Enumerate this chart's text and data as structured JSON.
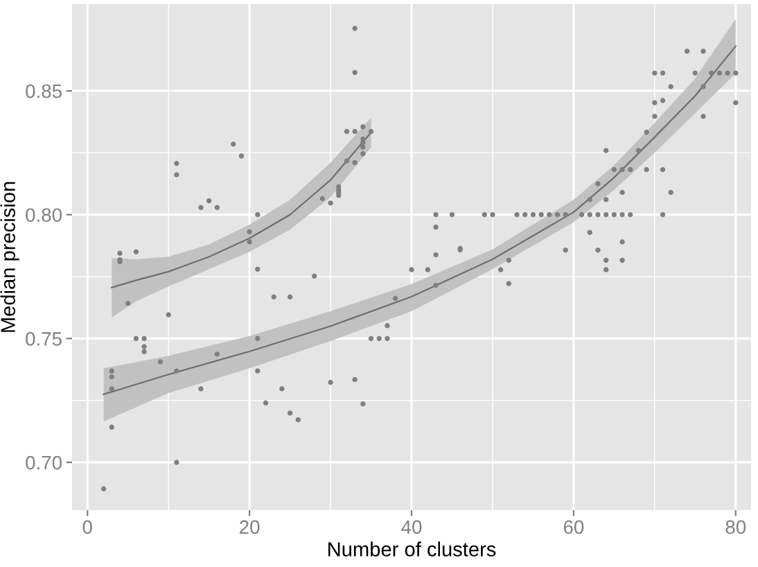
{
  "chart_data": {
    "type": "scatter",
    "xlabel": "Number of clusters",
    "ylabel": "Median precision",
    "xlim": [
      -1.9,
      81.9
    ],
    "ylim": [
      0.6807,
      0.885
    ],
    "xticks": [
      0,
      {
        "value": 10,
        "label": null
      },
      20,
      {
        "value": 30,
        "label": null
      },
      40,
      {
        "value": 50,
        "label": null
      },
      60,
      {
        "value": 70,
        "label": null
      },
      80
    ],
    "yticks": [
      {
        "value": 0.7,
        "label": "0.70"
      },
      {
        "value": 0.725,
        "label": null
      },
      {
        "value": 0.75,
        "label": "0.75"
      },
      {
        "value": 0.775,
        "label": null
      },
      {
        "value": 0.8,
        "label": "0.80"
      },
      {
        "value": 0.825,
        "label": null
      },
      {
        "value": 0.85,
        "label": "0.85"
      }
    ],
    "grid": true,
    "line_style": "solid",
    "series": [
      {
        "marker": "circle",
        "color": "#7f7f7f",
        "x": [
          4,
          4,
          4,
          5,
          6,
          10,
          11,
          11,
          14,
          15,
          16,
          18,
          19,
          20,
          20,
          21,
          21,
          29,
          30,
          31,
          31,
          31,
          31,
          32,
          32,
          33,
          33,
          33,
          33,
          34,
          34,
          34,
          34,
          34,
          35
        ],
        "values": [
          0.7844,
          0.7818,
          0.781,
          0.7642,
          0.785,
          0.7596,
          0.8207,
          0.8161,
          0.8029,
          0.8056,
          0.8029,
          0.8285,
          0.8237,
          0.7931,
          0.789,
          0.8,
          0.778,
          0.8065,
          0.8047,
          0.8113,
          0.81,
          0.8089,
          0.8078,
          0.8336,
          0.8217,
          0.8752,
          0.8574,
          0.8336,
          0.821,
          0.8355,
          0.8305,
          0.8292,
          0.8273,
          0.8246,
          0.8336
        ]
      },
      {
        "marker": "circle",
        "color": "#7f7f7f",
        "x": [
          2,
          3,
          3,
          3,
          3,
          6,
          7,
          7,
          7,
          9,
          11,
          11,
          14,
          16,
          21,
          21,
          22,
          23,
          24,
          25,
          25,
          26,
          28,
          30,
          33,
          34,
          35,
          36,
          37,
          37,
          38,
          40,
          42,
          43,
          43,
          43,
          43,
          45,
          46,
          46,
          49,
          50,
          51,
          52,
          52,
          53,
          54,
          55,
          56,
          57,
          58,
          59,
          59,
          61,
          62,
          62,
          62,
          63,
          63,
          63,
          64,
          64,
          64,
          64,
          64,
          65,
          65,
          66,
          66,
          66,
          66,
          66,
          67,
          67,
          68,
          69,
          69,
          70,
          70,
          70,
          71,
          71,
          71,
          71,
          72,
          72,
          74,
          75,
          76,
          76,
          76,
          77,
          78,
          79,
          80,
          80
        ],
        "values": [
          0.6893,
          0.7369,
          0.7345,
          0.7297,
          0.7142,
          0.75,
          0.75,
          0.7467,
          0.7447,
          0.7406,
          0.7369,
          0.7,
          0.7297,
          0.7437,
          0.75,
          0.7369,
          0.724,
          0.7668,
          0.7297,
          0.7668,
          0.7199,
          0.7172,
          0.7752,
          0.7323,
          0.7334,
          0.7236,
          0.75,
          0.75,
          0.75,
          0.7552,
          0.7662,
          0.7778,
          0.7778,
          0.8,
          0.795,
          0.7838,
          0.7715,
          0.8,
          0.7864,
          0.7858,
          0.8,
          0.8,
          0.7778,
          0.7816,
          0.7722,
          0.8,
          0.8,
          0.8,
          0.8,
          0.8,
          0.8,
          0.8,
          0.7857,
          0.8,
          0.8,
          0.8061,
          0.7928,
          0.8,
          0.8125,
          0.7857,
          0.8,
          0.8259,
          0.8061,
          0.7816,
          0.7778,
          0.8,
          0.8182,
          0.8,
          0.8182,
          0.809,
          0.789,
          0.7816,
          0.8,
          0.8182,
          0.8259,
          0.8333,
          0.8182,
          0.8572,
          0.8452,
          0.8397,
          0.8572,
          0.8461,
          0.8182,
          0.8,
          0.8517,
          0.809,
          0.866,
          0.8572,
          0.866,
          0.8517,
          0.8397,
          0.8572,
          0.8572,
          0.8572,
          0.8572,
          0.8452
        ]
      },
      {
        "type": "line",
        "color": "#6e6e6e",
        "x": [
          3,
          6,
          10,
          15,
          20,
          25,
          30,
          35
        ],
        "values": [
          0.7706,
          0.7735,
          0.777,
          0.783,
          0.7905,
          0.8,
          0.814,
          0.8332
        ],
        "lower": [
          0.7585,
          0.765,
          0.771,
          0.778,
          0.785,
          0.794,
          0.807,
          0.8272
        ],
        "upper": [
          0.7825,
          0.782,
          0.783,
          0.788,
          0.796,
          0.806,
          0.821,
          0.8391
        ]
      },
      {
        "type": "line",
        "color": "#6e6e6e",
        "x": [
          2,
          10,
          20,
          30,
          40,
          50,
          60,
          65,
          70,
          75,
          80
        ],
        "values": [
          0.7275,
          0.7355,
          0.7448,
          0.755,
          0.7669,
          0.782,
          0.801,
          0.815,
          0.8313,
          0.848,
          0.868
        ],
        "lower": [
          0.7165,
          0.728,
          0.738,
          0.749,
          0.761,
          0.778,
          0.797,
          0.81,
          0.825,
          0.841,
          0.857
        ],
        "upper": [
          0.738,
          0.743,
          0.751,
          0.761,
          0.772,
          0.786,
          0.806,
          0.82,
          0.837,
          0.855,
          0.879
        ]
      }
    ]
  }
}
